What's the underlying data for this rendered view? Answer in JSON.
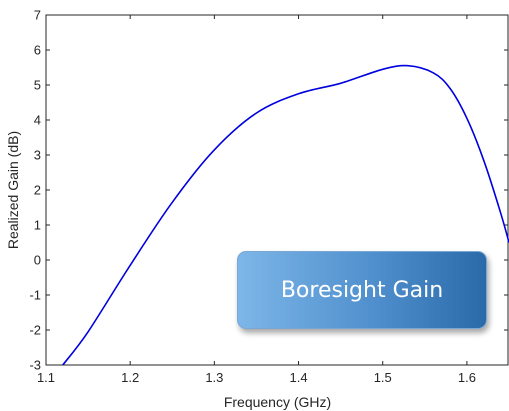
{
  "chart_data": {
    "type": "line",
    "xlabel": "Frequency (GHz)",
    "ylabel": "Realized Gain (dB)",
    "xlim": [
      1.1,
      1.65
    ],
    "ylim": [
      -3,
      7
    ],
    "xticks": [
      "1.1",
      "1.2",
      "1.3",
      "1.4",
      "1.5",
      "1.6"
    ],
    "yticks": [
      "-3",
      "-2",
      "-1",
      "0",
      "1",
      "2",
      "3",
      "4",
      "5",
      "6",
      "7"
    ],
    "grid": false,
    "series": [
      {
        "color": "#0000e0",
        "x": [
          1.12,
          1.15,
          1.2,
          1.25,
          1.3,
          1.35,
          1.4,
          1.45,
          1.5,
          1.53,
          1.56,
          1.58,
          1.6,
          1.62,
          1.64,
          1.65
        ],
        "y": [
          -3.0,
          -2.05,
          -0.15,
          1.65,
          3.15,
          4.2,
          4.75,
          5.05,
          5.45,
          5.55,
          5.35,
          4.9,
          4.05,
          2.85,
          1.35,
          0.5
        ]
      }
    ],
    "annotation": "Boresight Gain"
  }
}
